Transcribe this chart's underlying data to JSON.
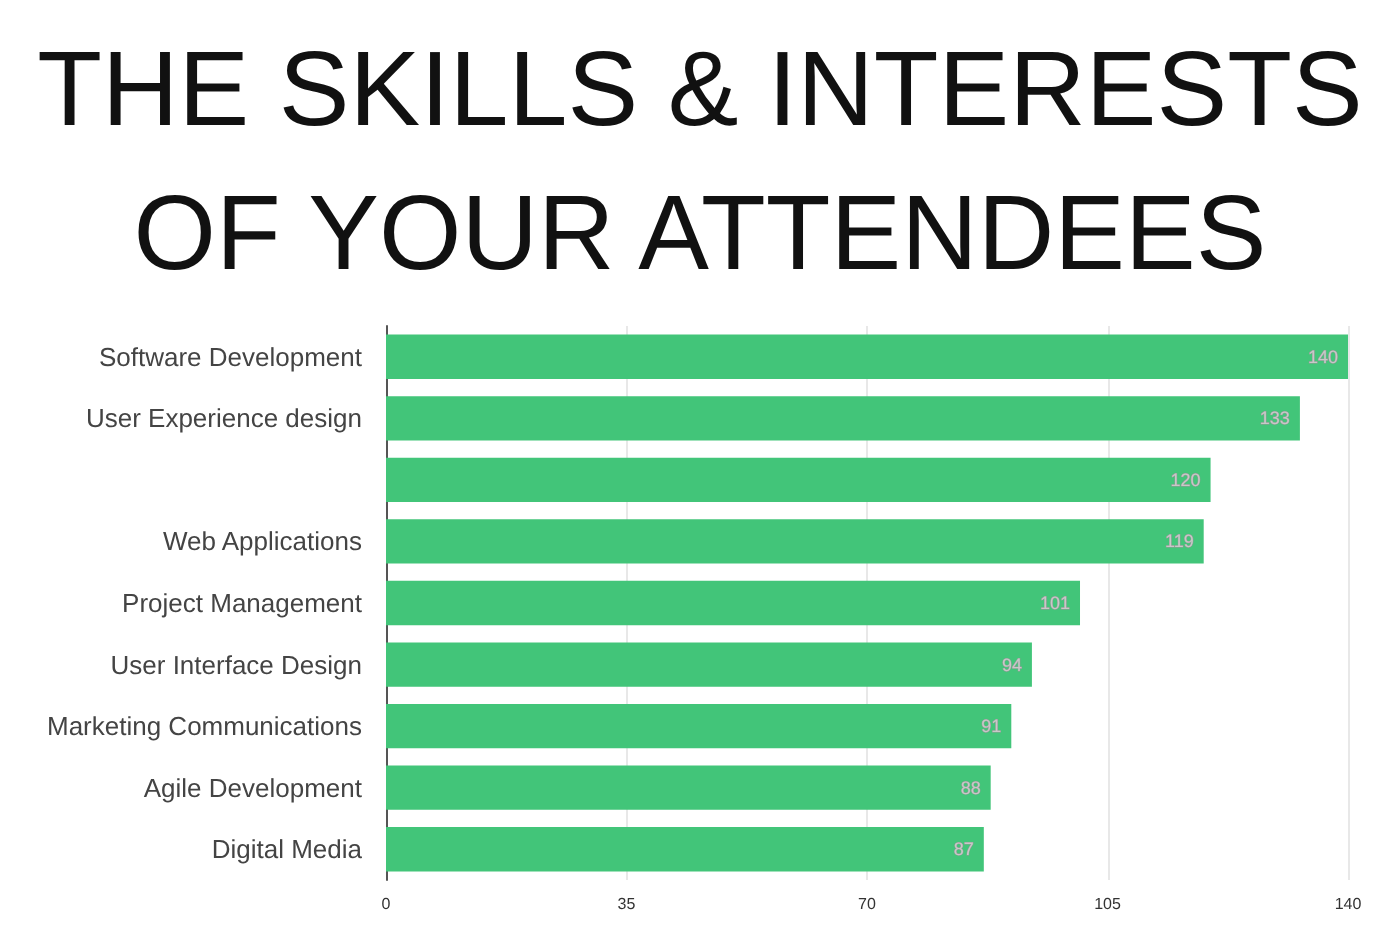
{
  "chart_data": {
    "type": "bar",
    "orientation": "horizontal",
    "title": "THE SKILLS & INTERESTS\nOF YOUR ATTENDEES",
    "categories": [
      "Software Development",
      "User Experience design",
      null,
      "Web Applications",
      "Project Management",
      "User Interface Design",
      "Marketing Communications",
      "Agile Development",
      "Digital Media"
    ],
    "values": [
      140,
      133,
      120,
      119,
      101,
      94,
      91,
      88,
      87
    ],
    "color": "#42c579",
    "xlim": [
      0,
      140
    ],
    "xticks": [
      0,
      35,
      70,
      105,
      140
    ],
    "grid": "x",
    "data_labels": true
  }
}
